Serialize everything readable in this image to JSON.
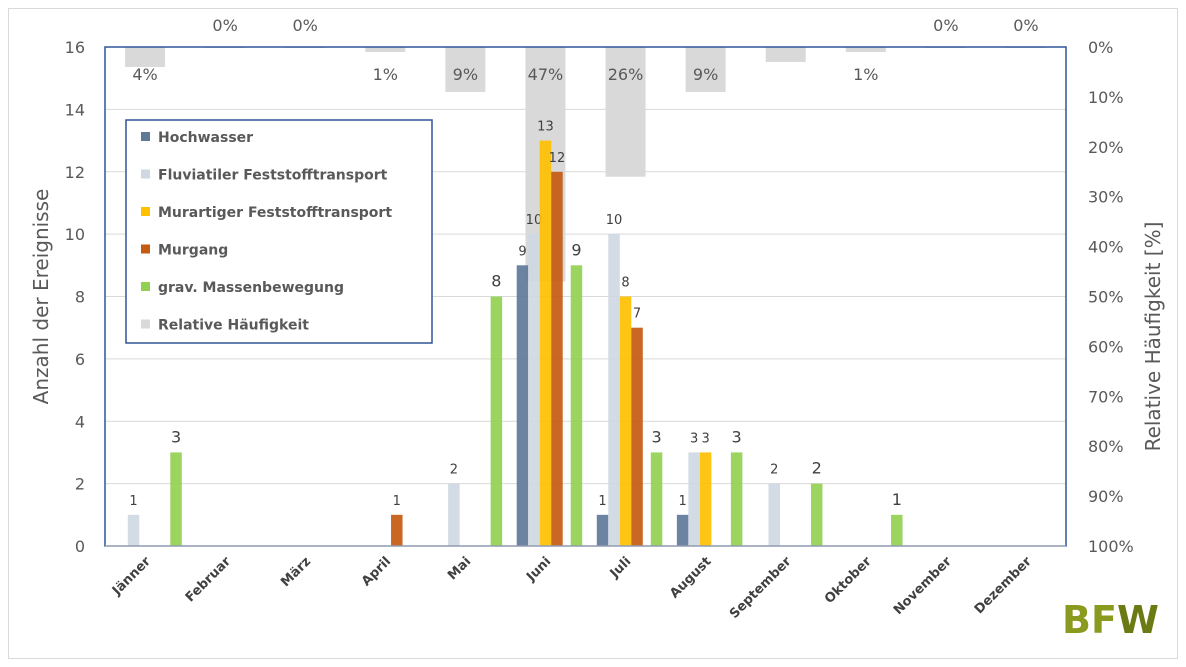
{
  "chart_data": {
    "type": "bar",
    "categories": [
      "Jänner",
      "Februar",
      "März",
      "April",
      "Mai",
      "Juni",
      "Juli",
      "August",
      "September",
      "Oktober",
      "November",
      "Dezember"
    ],
    "series": [
      {
        "name": "Hochwasser",
        "color": "#5f7a99",
        "values": [
          0,
          0,
          0,
          0,
          0,
          9,
          1,
          1,
          0,
          0,
          0,
          0
        ]
      },
      {
        "name": "Fluviatiler Feststofftransport",
        "color": "#cfd8e2",
        "values": [
          1,
          0,
          0,
          0,
          2,
          10,
          10,
          3,
          2,
          0,
          0,
          0
        ]
      },
      {
        "name": "Murartiger Feststofftransport",
        "color": "#ffc000",
        "values": [
          0,
          0,
          0,
          0,
          0,
          13,
          8,
          3,
          0,
          0,
          0,
          0
        ]
      },
      {
        "name": "Murgang",
        "color": "#c55a11",
        "values": [
          0,
          0,
          0,
          1,
          0,
          12,
          7,
          0,
          0,
          0,
          0,
          0
        ]
      },
      {
        "name": "grav. Massenbewegung",
        "color": "#92d050",
        "values": [
          3,
          0,
          0,
          0,
          8,
          9,
          3,
          3,
          2,
          1,
          0,
          0
        ]
      }
    ],
    "relative_series": {
      "name": "Relative Häufigkeit",
      "color": "#d9d9d9",
      "values": [
        4,
        0,
        0,
        1,
        9,
        47,
        26,
        9,
        3,
        1,
        0,
        0
      ],
      "labels": [
        "4%",
        "0%",
        "0%",
        "1%",
        "9%",
        "47%",
        "26%",
        "9%",
        "",
        "1%",
        "0%",
        "0%"
      ]
    },
    "ylabel": "Anzahl der Ereignisse",
    "y2label": "Relative Häufigkeit [%]",
    "ylim": [
      0,
      16
    ],
    "yticks": [
      "0",
      "2",
      "4",
      "6",
      "8",
      "10",
      "12",
      "14",
      "16"
    ],
    "y2lim": [
      0,
      100
    ],
    "y2ticks": [
      "0%",
      "10%",
      "20%",
      "30%",
      "40%",
      "50%",
      "60%",
      "70%",
      "80%",
      "90%",
      "100%"
    ],
    "y2_inverted": true,
    "grid": true,
    "legend_position": "top-left inside"
  },
  "logo": {
    "text": "BFW",
    "color_b": "#8a9a1e",
    "color_f": "#8a9a1e",
    "color_w": "#6b7a12"
  }
}
